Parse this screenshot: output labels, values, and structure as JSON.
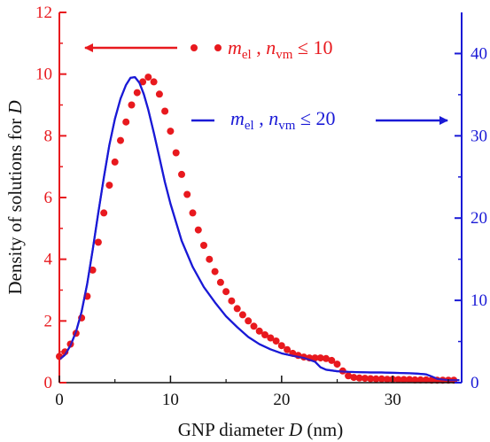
{
  "chart_data": {
    "type": "scatter",
    "xlabel": {
      "text": "GNP diameter ",
      "italic_var": "D",
      "unit": " (nm)"
    },
    "ylabel": {
      "text": "Density of solutions for ",
      "italic_var": "D"
    },
    "xlim": [
      0,
      36.2
    ],
    "ylim_left": [
      0,
      12
    ],
    "ylim_right": [
      0,
      45
    ],
    "x_ticks": [
      0,
      10,
      20,
      30
    ],
    "y_ticks_left": [
      0,
      2,
      4,
      6,
      8,
      10,
      12
    ],
    "y_ticks_right": [
      0,
      10,
      20,
      30,
      40
    ],
    "grid": false,
    "colors": {
      "red": "#e8191e",
      "blue": "#1a1ad6",
      "axis": "#111111"
    },
    "legend": [
      {
        "series": "red",
        "m": "m",
        "m_sub": "el",
        "sep": " , ",
        "n": "n",
        "n_sub": "vm",
        "rel": " ≤ 10",
        "arrow": "left"
      },
      {
        "series": "blue",
        "m": "m",
        "m_sub": "el",
        "sep": " , ",
        "n": "n",
        "n_sub": "vm",
        "rel": " ≤ 20",
        "arrow": "right"
      }
    ],
    "series": [
      {
        "key": "red",
        "axis": "left",
        "style": "markers",
        "x": [
          0.0,
          0.5,
          1.0,
          1.5,
          2.0,
          2.5,
          3.0,
          3.5,
          4.0,
          4.5,
          5.0,
          5.5,
          6.0,
          6.5,
          7.0,
          7.5,
          8.0,
          8.5,
          9.0,
          9.5,
          10.0,
          10.5,
          11.0,
          11.5,
          12.0,
          12.5,
          13.0,
          13.5,
          14.0,
          14.5,
          15.0,
          15.5,
          16.0,
          16.5,
          17.0,
          17.5,
          18.0,
          18.5,
          19.0,
          19.5,
          20.0,
          20.5,
          21.0,
          21.5,
          22.0,
          22.5,
          23.0,
          23.5,
          24.0,
          24.5,
          25.0,
          25.5,
          26.0,
          26.5,
          27.0,
          27.5,
          28.0,
          28.5,
          29.0,
          29.5,
          30.0,
          30.5,
          31.0,
          31.5,
          32.0,
          32.5,
          33.0,
          33.5,
          34.0,
          34.5,
          35.0,
          35.5
        ],
        "y": [
          0.85,
          1.0,
          1.25,
          1.6,
          2.1,
          2.8,
          3.65,
          4.55,
          5.5,
          6.4,
          7.15,
          7.85,
          8.45,
          9.0,
          9.4,
          9.75,
          9.9,
          9.75,
          9.35,
          8.8,
          8.15,
          7.45,
          6.75,
          6.1,
          5.5,
          4.95,
          4.45,
          4.0,
          3.6,
          3.25,
          2.95,
          2.65,
          2.4,
          2.2,
          2.0,
          1.83,
          1.67,
          1.55,
          1.45,
          1.35,
          1.2,
          1.07,
          0.95,
          0.88,
          0.83,
          0.8,
          0.8,
          0.8,
          0.78,
          0.72,
          0.6,
          0.38,
          0.22,
          0.17,
          0.15,
          0.14,
          0.13,
          0.12,
          0.12,
          0.11,
          0.11,
          0.1,
          0.1,
          0.1,
          0.09,
          0.09,
          0.09,
          0.08,
          0.08,
          0.08,
          0.08,
          0.08
        ]
      },
      {
        "key": "blue",
        "axis": "left",
        "style": "line",
        "x": [
          0.0,
          0.5,
          1.0,
          1.5,
          2.0,
          2.5,
          3.0,
          3.5,
          4.0,
          4.5,
          5.0,
          5.5,
          6.0,
          6.4,
          6.8,
          7.2,
          7.6,
          8.0,
          8.5,
          9.0,
          9.5,
          10.0,
          11.0,
          12.0,
          13.0,
          14.0,
          15.0,
          16.0,
          17.0,
          18.0,
          19.0,
          20.0,
          21.0,
          22.0,
          23.0,
          23.5,
          24.0,
          25.0,
          26.0,
          27.0,
          28.0,
          29.0,
          30.0,
          31.0,
          32.0,
          33.0,
          33.5,
          34.0,
          35.0,
          36.0
        ],
        "y": [
          0.75,
          0.9,
          1.2,
          1.65,
          2.3,
          3.2,
          4.3,
          5.5,
          6.65,
          7.7,
          8.55,
          9.2,
          9.65,
          9.88,
          9.9,
          9.72,
          9.35,
          8.85,
          8.1,
          7.3,
          6.5,
          5.8,
          4.6,
          3.75,
          3.1,
          2.6,
          2.15,
          1.8,
          1.48,
          1.25,
          1.08,
          0.95,
          0.87,
          0.8,
          0.68,
          0.5,
          0.42,
          0.37,
          0.35,
          0.34,
          0.33,
          0.33,
          0.32,
          0.31,
          0.3,
          0.27,
          0.2,
          0.12,
          0.08,
          0.08
        ]
      }
    ]
  }
}
